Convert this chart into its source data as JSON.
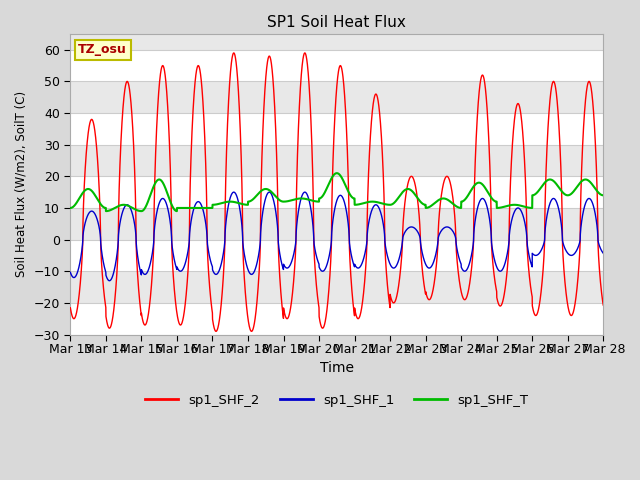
{
  "title": "SP1 Soil Heat Flux",
  "xlabel": "Time",
  "ylabel": "Soil Heat Flux (W/m2), SoilT (C)",
  "ylim": [
    -30,
    65
  ],
  "bg_color": "#d9d9d9",
  "plot_bg": "#ffffff",
  "annotation_text": "TZ_osu",
  "annotation_bg": "#ffffcc",
  "annotation_border": "#bbbb00",
  "legend_colors": [
    "#ff0000",
    "#0000cc",
    "#00bb00"
  ],
  "legend_labels": [
    "sp1_SHF_2",
    "sp1_SHF_1",
    "sp1_SHF_T"
  ],
  "x_tick_labels": [
    "Mar 13",
    "Mar 14",
    "Mar 15",
    "Mar 16",
    "Mar 17",
    "Mar 18",
    "Mar 19",
    "Mar 20",
    "Mar 21",
    "Mar 22",
    "Mar 23",
    "Mar 24",
    "Mar 25",
    "Mar 26",
    "Mar 27",
    "Mar 28"
  ],
  "yticks": [
    -30,
    -20,
    -10,
    0,
    10,
    20,
    30,
    40,
    50,
    60
  ],
  "n_days": 15,
  "shf2_peak": [
    38,
    50,
    55,
    55,
    59,
    58,
    59,
    55,
    46,
    20,
    20,
    52,
    43,
    50,
    50
  ],
  "shf2_trough": [
    -25,
    -28,
    -27,
    -27,
    -29,
    -29,
    -25,
    -28,
    -25,
    -20,
    -19,
    -19,
    -21,
    -24,
    -24
  ],
  "shf1_peak": [
    9,
    11,
    13,
    12,
    15,
    15,
    15,
    14,
    11,
    4,
    4,
    13,
    10,
    13,
    13
  ],
  "shf1_trough": [
    -12,
    -13,
    -11,
    -10,
    -11,
    -11,
    -9,
    -10,
    -9,
    -9,
    -9,
    -10,
    -10,
    -5,
    -5
  ],
  "shfT_peak": [
    16,
    11,
    19,
    10,
    12,
    16,
    13,
    21,
    12,
    16,
    13,
    18,
    11,
    19,
    19
  ],
  "shfT_trough": [
    10,
    9,
    9,
    10,
    11,
    12,
    12,
    13,
    11,
    11,
    10,
    12,
    10,
    14,
    14
  ],
  "grid_stripe_color": "#e8e8e8",
  "grid_line_color": "#cccccc"
}
